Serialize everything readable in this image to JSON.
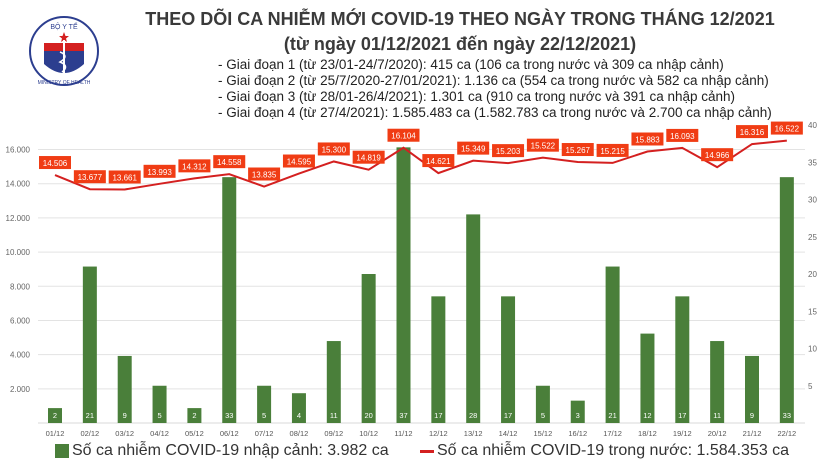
{
  "header": {
    "logo_text": "BỘ Y TẾ - MINISTRY OF HEALTH",
    "title": "THEO DÕI CA NHIỄM MỚI COVID-19 THEO NGÀY TRONG THÁNG 12/2021",
    "subtitle": "(từ ngày 01/12/2021 đến ngày 22/12/2021)",
    "phases": [
      "- Giai đoạn 1 (từ 23/01-24/7/2020): 415 ca (106 ca trong nước và 309 ca nhập cảnh)",
      "- Giai đoạn 2 (từ 25/7/2020-27/01/2021): 1.136 ca (554 ca trong nước và 582 ca nhập cảnh)",
      "- Giai đoạn 3 (từ 28/01-26/4/2021): 1.301 ca (910 ca trong nước và 391 ca nhập cảnh)",
      "- Giai đoạn 4 (từ 27/4/2021): 1.585.483 ca (1.582.783 ca trong nước và 2.700 ca nhập cảnh)"
    ]
  },
  "chart_data": {
    "type": "bar+line",
    "categories": [
      "01/12",
      "02/12",
      "03/12",
      "04/12",
      "05/12",
      "06/12",
      "07/12",
      "08/12",
      "09/12",
      "10/12",
      "11/12",
      "12/12",
      "13/12",
      "14/12",
      "15/12",
      "16/12",
      "17/12",
      "18/12",
      "19/12",
      "20/12",
      "21/12",
      "22/12"
    ],
    "series": [
      {
        "name": "Số ca nhiễm COVID-19 nhập cảnh: 3.982 ca",
        "type": "bar",
        "axis": "right",
        "color": "#4a7f3a",
        "values": [
          2,
          21,
          9,
          5,
          2,
          33,
          5,
          4,
          11,
          20,
          37,
          17,
          28,
          17,
          5,
          3,
          21,
          12,
          17,
          11,
          9,
          33
        ]
      },
      {
        "name": "Số ca nhiễm COVID-19 trong nước: 1.584.353 ca",
        "type": "line",
        "axis": "left",
        "color": "#d42020",
        "values": [
          14506,
          13677,
          13661,
          13993,
          14312,
          14558,
          13835,
          14595,
          15300,
          14819,
          16104,
          14621,
          15349,
          15203,
          15522,
          15267,
          15215,
          15883,
          16093,
          14966,
          16316,
          16522
        ],
        "labels": [
          "14.506",
          "13.677",
          "13.661",
          "13.993",
          "14.312",
          "14.558",
          "13.835",
          "14.595",
          "15.300",
          "14.819",
          "16.104",
          "14.621",
          "15.349",
          "15.203",
          "15.522",
          "15.267",
          "15.215",
          "15.883",
          "16.093",
          "14.966",
          "16.316",
          "16.522"
        ]
      }
    ],
    "left_axis": {
      "range": [
        0,
        17500
      ],
      "ticks": [
        "2.000",
        "4.000",
        "6.000",
        "8.000",
        "10.000",
        "12.000",
        "14.000",
        "16.000"
      ],
      "tick_values": [
        2000,
        4000,
        6000,
        8000,
        10000,
        12000,
        14000,
        16000
      ]
    },
    "right_axis": {
      "range": [
        0,
        40
      ],
      "ticks": [
        "5",
        "10",
        "15",
        "20",
        "25",
        "30",
        "35",
        "40"
      ],
      "tick_values": [
        5,
        10,
        15,
        20,
        25,
        30,
        35,
        40
      ]
    },
    "grid": true,
    "legend": "bottom",
    "label_box_color": "#f03c14"
  }
}
